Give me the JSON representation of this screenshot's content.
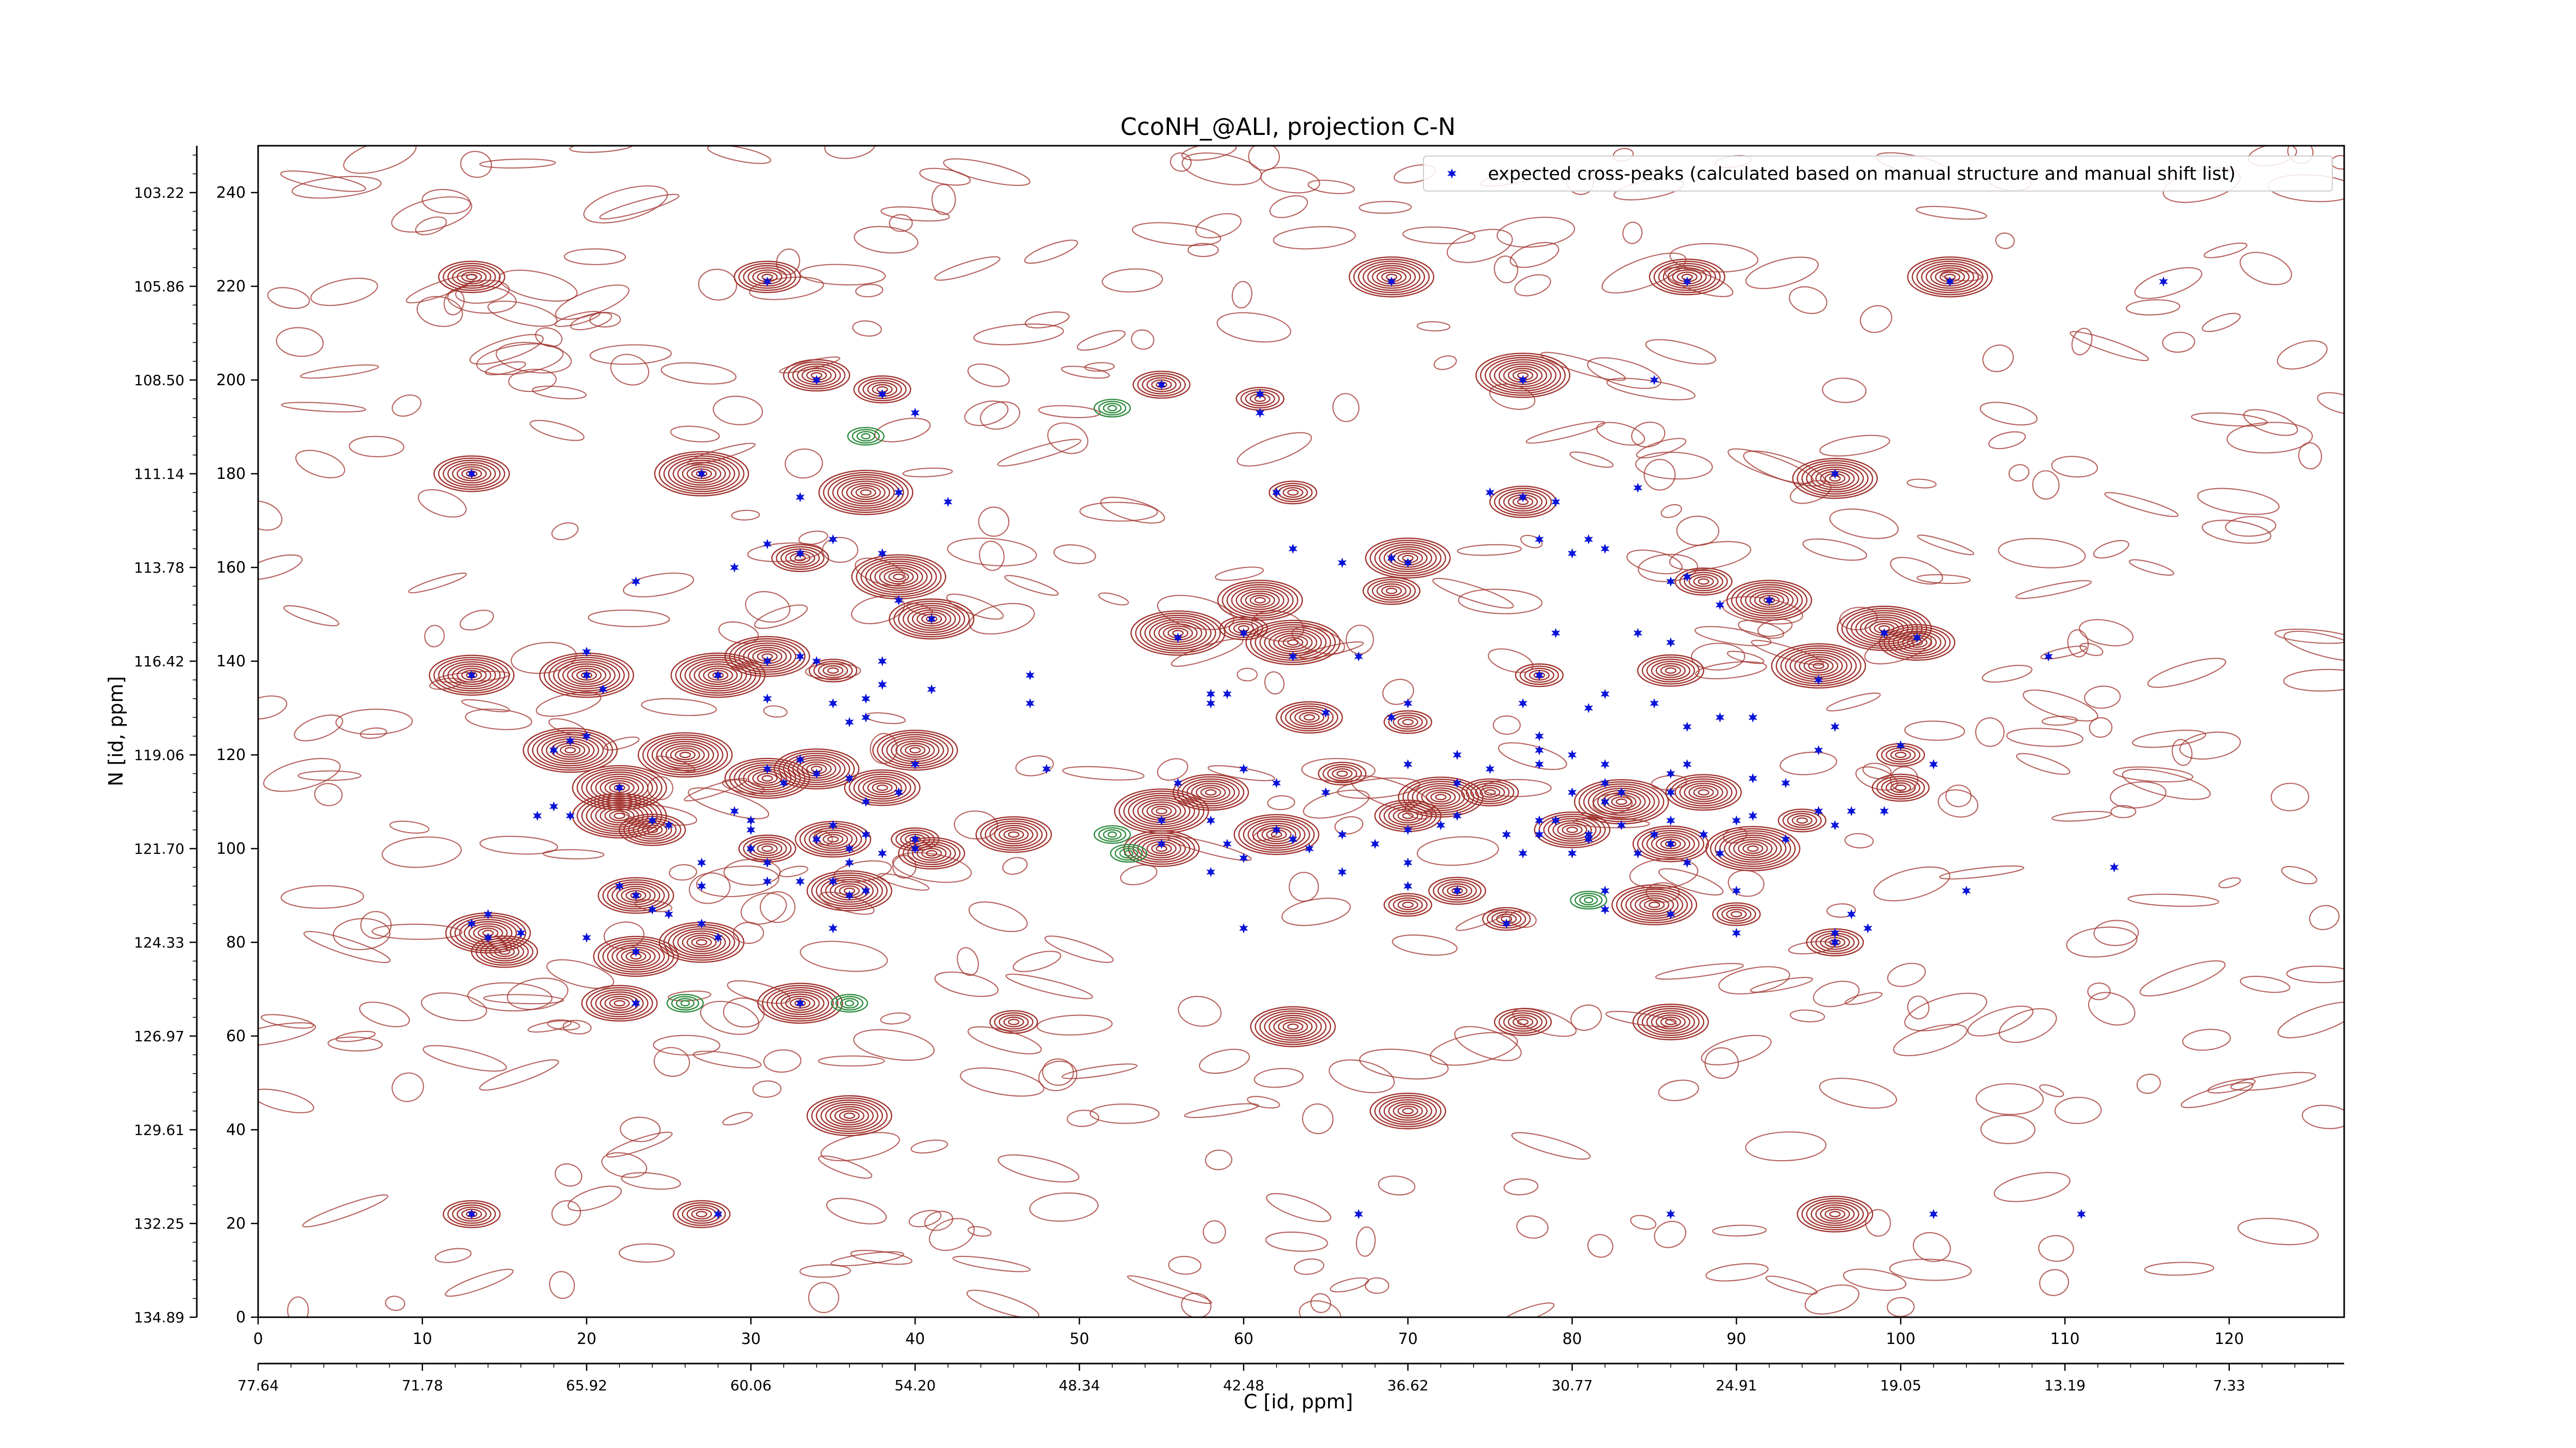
{
  "chart_data": {
    "type": "scatter",
    "title": "CcoNH_@ALI, projection C-N",
    "xlabel": "C [id, ppm]",
    "ylabel": "N [id, ppm]",
    "xlim": [
      0,
      127
    ],
    "ylim": [
      0,
      250
    ],
    "x_ticks": [
      0,
      10,
      20,
      30,
      40,
      50,
      60,
      70,
      80,
      90,
      100,
      110,
      120
    ],
    "y_ticks": [
      0,
      20,
      40,
      60,
      80,
      100,
      120,
      140,
      160,
      180,
      200,
      220,
      240
    ],
    "x_ppm_ticks": [
      "77.64",
      "71.78",
      "65.92",
      "60.06",
      "54.20",
      "48.34",
      "42.48",
      "36.62",
      "30.77",
      "24.91",
      "19.05",
      "13.19",
      "7.33"
    ],
    "y_ppm_ticks": [
      "134.89",
      "132.25",
      "129.61",
      "126.97",
      "124.33",
      "121.70",
      "119.06",
      "116.42",
      "113.78",
      "111.14",
      "108.50",
      "105.86",
      "103.22"
    ],
    "grid": false,
    "legend_position": "top-right",
    "colors": {
      "positive_contour": "#a0332e",
      "negative_contour": "#2e8b3e",
      "marker": "#0a14d8",
      "axis": "#000000"
    },
    "contour_peaks": [
      [
        13,
        222
      ],
      [
        31,
        222
      ],
      [
        69,
        222
      ],
      [
        87,
        222
      ],
      [
        103,
        222
      ],
      [
        34,
        201
      ],
      [
        38,
        198
      ],
      [
        55,
        199
      ],
      [
        61,
        196
      ],
      [
        77,
        201
      ],
      [
        13,
        180
      ],
      [
        27,
        180
      ],
      [
        37,
        176
      ],
      [
        63,
        176
      ],
      [
        77,
        174
      ],
      [
        96,
        179
      ],
      [
        33,
        162
      ],
      [
        39,
        158
      ],
      [
        61,
        153
      ],
      [
        69,
        155
      ],
      [
        70,
        162
      ],
      [
        88,
        157
      ],
      [
        92,
        153
      ],
      [
        41,
        149
      ],
      [
        56,
        146
      ],
      [
        60,
        147
      ],
      [
        63,
        144
      ],
      [
        99,
        147
      ],
      [
        101,
        144
      ],
      [
        13,
        137
      ],
      [
        20,
        137
      ],
      [
        28,
        137
      ],
      [
        31,
        141
      ],
      [
        35,
        138
      ],
      [
        78,
        137
      ],
      [
        86,
        138
      ],
      [
        95,
        139
      ],
      [
        19,
        121
      ],
      [
        22,
        113
      ],
      [
        26,
        120
      ],
      [
        31,
        115
      ],
      [
        34,
        117
      ],
      [
        38,
        113
      ],
      [
        40,
        121
      ],
      [
        46,
        103
      ],
      [
        55,
        108
      ],
      [
        55,
        100
      ],
      [
        58,
        112
      ],
      [
        62,
        103
      ],
      [
        64,
        128
      ],
      [
        66,
        116
      ],
      [
        70,
        107
      ],
      [
        70,
        127
      ],
      [
        72,
        111
      ],
      [
        75,
        112
      ],
      [
        80,
        104
      ],
      [
        83,
        110
      ],
      [
        86,
        101
      ],
      [
        88,
        112
      ],
      [
        91,
        100
      ],
      [
        94,
        106
      ],
      [
        100,
        113
      ],
      [
        100,
        120
      ],
      [
        22,
        107
      ],
      [
        24,
        104
      ],
      [
        31,
        100
      ],
      [
        35,
        102
      ],
      [
        40,
        102
      ],
      [
        41,
        99
      ],
      [
        23,
        90
      ],
      [
        36,
        91
      ],
      [
        70,
        88
      ],
      [
        73,
        91
      ],
      [
        76,
        85
      ],
      [
        85,
        88
      ],
      [
        90,
        86
      ],
      [
        96,
        80
      ],
      [
        14,
        82
      ],
      [
        15,
        78
      ],
      [
        23,
        77
      ],
      [
        27,
        80
      ],
      [
        33,
        67
      ],
      [
        46,
        63
      ],
      [
        63,
        62
      ],
      [
        77,
        63
      ],
      [
        86,
        63
      ],
      [
        22,
        67
      ],
      [
        36,
        43
      ],
      [
        70,
        44
      ],
      [
        13,
        22
      ],
      [
        27,
        22
      ],
      [
        96,
        22
      ]
    ],
    "negative_peaks": [
      [
        52,
        194
      ],
      [
        37,
        188
      ],
      [
        26,
        67
      ],
      [
        36,
        67
      ],
      [
        52,
        103
      ],
      [
        53,
        99
      ],
      [
        81,
        89
      ]
    ],
    "series": [
      {
        "name": "expected cross-peaks (calculated based on manual structure and manual shift list)",
        "points": [
          [
            31,
            221
          ],
          [
            69,
            221
          ],
          [
            87,
            221
          ],
          [
            103,
            221
          ],
          [
            116,
            221
          ],
          [
            34,
            200
          ],
          [
            55,
            199
          ],
          [
            38,
            197
          ],
          [
            40,
            193
          ],
          [
            61,
            197
          ],
          [
            61,
            193
          ],
          [
            77,
            200
          ],
          [
            85,
            200
          ],
          [
            13,
            180
          ],
          [
            27,
            180
          ],
          [
            33,
            175
          ],
          [
            39,
            176
          ],
          [
            42,
            174
          ],
          [
            62,
            176
          ],
          [
            79,
            174
          ],
          [
            84,
            177
          ],
          [
            75,
            176
          ],
          [
            96,
            180
          ],
          [
            77,
            175
          ],
          [
            78,
            166
          ],
          [
            31,
            165
          ],
          [
            33,
            163
          ],
          [
            35,
            166
          ],
          [
            38,
            163
          ],
          [
            39,
            153
          ],
          [
            41,
            149
          ],
          [
            23,
            157
          ],
          [
            29,
            160
          ],
          [
            63,
            164
          ],
          [
            66,
            161
          ],
          [
            69,
            162
          ],
          [
            70,
            161
          ],
          [
            81,
            166
          ],
          [
            80,
            163
          ],
          [
            82,
            164
          ],
          [
            86,
            157
          ],
          [
            87,
            158
          ],
          [
            89,
            152
          ],
          [
            92,
            153
          ],
          [
            56,
            145
          ],
          [
            60,
            146
          ],
          [
            63,
            141
          ],
          [
            67,
            141
          ],
          [
            79,
            146
          ],
          [
            84,
            146
          ],
          [
            86,
            144
          ],
          [
            99,
            146
          ],
          [
            101,
            145
          ],
          [
            109,
            141
          ],
          [
            13,
            137
          ],
          [
            20,
            137
          ],
          [
            20,
            142
          ],
          [
            21,
            134
          ],
          [
            28,
            137
          ],
          [
            31,
            140
          ],
          [
            33,
            141
          ],
          [
            34,
            140
          ],
          [
            38,
            140
          ],
          [
            38,
            135
          ],
          [
            47,
            137
          ],
          [
            47,
            131
          ],
          [
            31,
            132
          ],
          [
            35,
            131
          ],
          [
            37,
            132
          ],
          [
            37,
            128
          ],
          [
            38,
            135
          ],
          [
            36,
            127
          ],
          [
            41,
            134
          ],
          [
            58,
            133
          ],
          [
            58,
            131
          ],
          [
            59,
            133
          ],
          [
            65,
            129
          ],
          [
            69,
            128
          ],
          [
            70,
            131
          ],
          [
            78,
            137
          ],
          [
            77,
            131
          ],
          [
            81,
            130
          ],
          [
            82,
            133
          ],
          [
            85,
            131
          ],
          [
            87,
            126
          ],
          [
            89,
            128
          ],
          [
            91,
            128
          ],
          [
            95,
            136
          ],
          [
            18,
            121
          ],
          [
            19,
            123
          ],
          [
            20,
            124
          ],
          [
            40,
            118
          ],
          [
            48,
            117
          ],
          [
            56,
            114
          ],
          [
            60,
            117
          ],
          [
            62,
            114
          ],
          [
            65,
            112
          ],
          [
            70,
            118
          ],
          [
            73,
            114
          ],
          [
            73,
            120
          ],
          [
            75,
            117
          ],
          [
            78,
            124
          ],
          [
            78,
            121
          ],
          [
            78,
            118
          ],
          [
            80,
            112
          ],
          [
            80,
            120
          ],
          [
            82,
            118
          ],
          [
            82,
            114
          ],
          [
            83,
            112
          ],
          [
            86,
            116
          ],
          [
            87,
            118
          ],
          [
            86,
            112
          ],
          [
            91,
            115
          ],
          [
            93,
            114
          ],
          [
            95,
            121
          ],
          [
            96,
            126
          ],
          [
            100,
            122
          ],
          [
            102,
            118
          ],
          [
            17,
            107
          ],
          [
            18,
            109
          ],
          [
            19,
            107
          ],
          [
            22,
            113
          ],
          [
            24,
            106
          ],
          [
            25,
            105
          ],
          [
            29,
            108
          ],
          [
            30,
            106
          ],
          [
            31,
            117
          ],
          [
            32,
            114
          ],
          [
            33,
            119
          ],
          [
            34,
            116
          ],
          [
            36,
            115
          ],
          [
            37,
            110
          ],
          [
            39,
            112
          ],
          [
            30,
            104
          ],
          [
            30,
            100
          ],
          [
            31,
            97
          ],
          [
            34,
            102
          ],
          [
            35,
            105
          ],
          [
            36,
            100
          ],
          [
            37,
            103
          ],
          [
            38,
            99
          ],
          [
            40,
            102
          ],
          [
            40,
            100
          ],
          [
            55,
            106
          ],
          [
            55,
            101
          ],
          [
            58,
            106
          ],
          [
            59,
            101
          ],
          [
            62,
            104
          ],
          [
            63,
            102
          ],
          [
            64,
            100
          ],
          [
            66,
            103
          ],
          [
            68,
            101
          ],
          [
            70,
            104
          ],
          [
            70,
            97
          ],
          [
            72,
            105
          ],
          [
            73,
            107
          ],
          [
            76,
            103
          ],
          [
            77,
            99
          ],
          [
            78,
            106
          ],
          [
            78,
            103
          ],
          [
            79,
            106
          ],
          [
            80,
            99
          ],
          [
            81,
            103
          ],
          [
            81,
            102
          ],
          [
            82,
            110
          ],
          [
            83,
            105
          ],
          [
            84,
            99
          ],
          [
            85,
            103
          ],
          [
            86,
            106
          ],
          [
            86,
            101
          ],
          [
            87,
            97
          ],
          [
            88,
            103
          ],
          [
            89,
            99
          ],
          [
            90,
            106
          ],
          [
            91,
            107
          ],
          [
            93,
            102
          ],
          [
            95,
            108
          ],
          [
            96,
            105
          ],
          [
            97,
            108
          ],
          [
            99,
            108
          ],
          [
            60,
            98
          ],
          [
            58,
            95
          ],
          [
            36,
            97
          ],
          [
            33,
            93
          ],
          [
            35,
            93
          ],
          [
            31,
            93
          ],
          [
            27,
            97
          ],
          [
            27,
            92
          ],
          [
            22,
            92
          ],
          [
            23,
            90
          ],
          [
            24,
            87
          ],
          [
            25,
            86
          ],
          [
            36,
            90
          ],
          [
            37,
            91
          ],
          [
            66,
            95
          ],
          [
            70,
            92
          ],
          [
            73,
            91
          ],
          [
            76,
            84
          ],
          [
            86,
            86
          ],
          [
            90,
            82
          ],
          [
            96,
            80
          ],
          [
            96,
            82
          ],
          [
            97,
            86
          ],
          [
            98,
            83
          ],
          [
            14,
            86
          ],
          [
            13,
            84
          ],
          [
            14,
            81
          ],
          [
            16,
            82
          ],
          [
            20,
            81
          ],
          [
            23,
            78
          ],
          [
            27,
            84
          ],
          [
            28,
            81
          ],
          [
            33,
            67
          ],
          [
            35,
            83
          ],
          [
            60,
            83
          ],
          [
            82,
            91
          ],
          [
            82,
            87
          ],
          [
            90,
            91
          ],
          [
            104,
            91
          ],
          [
            113,
            96
          ],
          [
            23,
            67
          ],
          [
            13,
            22
          ],
          [
            28,
            22
          ],
          [
            67,
            22
          ],
          [
            86,
            22
          ],
          [
            102,
            22
          ],
          [
            111,
            22
          ]
        ]
      }
    ]
  }
}
